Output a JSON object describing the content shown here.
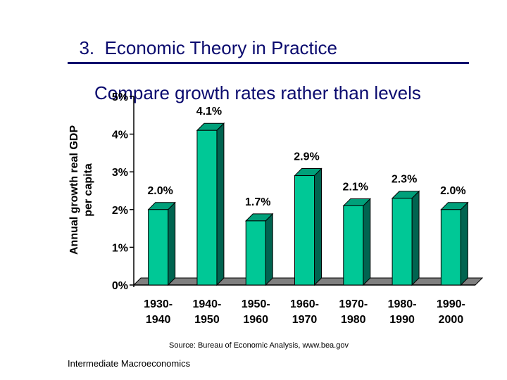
{
  "slide": {
    "title_line1": "3.  Economic Theory in Practice",
    "title_line2": "Compare growth rates rather than levels",
    "source": "Source: Bureau of Economic Analysis, www.bea.gov",
    "footer": "Intermediate Macroeconomics"
  },
  "colors": {
    "bar_front": "#00c896",
    "bar_side": "#006450",
    "bar_top": "#00a07a",
    "floor": "#7f7f7f",
    "title": "#0a0a6e"
  },
  "chart_data": {
    "type": "bar",
    "title": "",
    "xlabel": "",
    "ylabel": "Annual growth real GDP per capita",
    "ylabel_line1": "Annual growth real GDP",
    "ylabel_line2": "per capita",
    "ylim": [
      0,
      5
    ],
    "yticks": [
      "0%",
      "1%",
      "2%",
      "3%",
      "4%",
      "5%"
    ],
    "categories": [
      [
        "1930-",
        "1940"
      ],
      [
        "1940-",
        "1950"
      ],
      [
        "1950-",
        "1960"
      ],
      [
        "1960-",
        "1970"
      ],
      [
        "1970-",
        "1980"
      ],
      [
        "1980-",
        "1990"
      ],
      [
        "1990-",
        "2000"
      ]
    ],
    "values": [
      2.0,
      4.1,
      1.7,
      2.9,
      2.1,
      2.3,
      2.0
    ],
    "data_labels": [
      "2.0%",
      "4.1%",
      "1.7%",
      "2.9%",
      "2.1%",
      "2.3%",
      "2.0%"
    ]
  }
}
